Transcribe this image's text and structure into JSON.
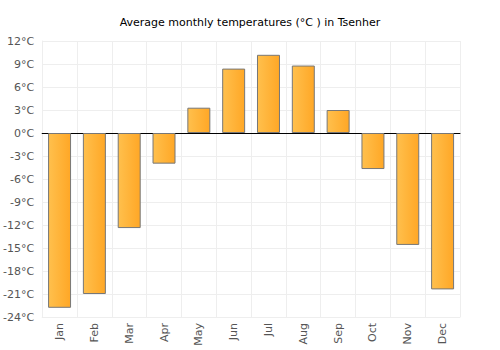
{
  "chart_data": {
    "type": "bar",
    "title": "Average monthly temperatures (°C ) in Tsenher",
    "categories": [
      "Jan",
      "Feb",
      "Mar",
      "Apr",
      "May",
      "Jun",
      "Jul",
      "Aug",
      "Sep",
      "Oct",
      "Nov",
      "Dec"
    ],
    "values": [
      -22.8,
      -21.0,
      -12.4,
      -4.0,
      3.3,
      8.4,
      10.2,
      8.8,
      3.0,
      -4.7,
      -14.6,
      -20.4
    ],
    "color": "#ffa726",
    "ylim": [
      -24,
      12
    ],
    "yticks": [
      {
        "value": -24,
        "label": "-24°C"
      },
      {
        "value": -21,
        "label": "-21°C"
      },
      {
        "value": -18,
        "label": "-18°C"
      },
      {
        "value": -15,
        "label": "-15°C"
      },
      {
        "value": -12,
        "label": "-12°C"
      },
      {
        "value": -9,
        "label": "-9°C"
      },
      {
        "value": -6,
        "label": "-6°C"
      },
      {
        "value": -3,
        "label": "-3°C"
      },
      {
        "value": 0,
        "label": "0°C"
      },
      {
        "value": 3,
        "label": "3°C"
      },
      {
        "value": 6,
        "label": "6°C"
      },
      {
        "value": 9,
        "label": "9°C"
      },
      {
        "value": 12,
        "label": "12°C"
      }
    ],
    "grid": true
  }
}
